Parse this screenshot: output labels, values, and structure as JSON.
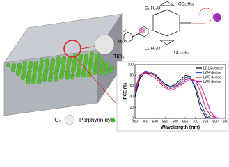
{
  "chart_data": {
    "type": "line",
    "x_label": "Wavelength (nm)",
    "y_label": "IPCE (%)",
    "x": [
      400,
      425,
      450,
      475,
      500,
      525,
      550,
      575,
      600,
      625,
      650,
      675,
      700,
      725,
      750,
      775,
      800,
      825,
      850
    ],
    "xlim": [
      400,
      850
    ],
    "xticks": [
      400,
      450,
      500,
      550,
      600,
      650,
      700,
      750,
      800,
      850
    ],
    "ylim": [
      0,
      100
    ],
    "yticks": [
      0,
      20,
      40,
      60,
      80,
      100
    ],
    "legend": "upper right",
    "series": [
      {
        "name": "LD14 device",
        "color": "#000000",
        "values": [
          40,
          75,
          85,
          83,
          80,
          72,
          64,
          60,
          63,
          72,
          80,
          78,
          55,
          20,
          3,
          0,
          0,
          0,
          0
        ]
      },
      {
        "name": "LW4 device",
        "color": "#1f3fd6",
        "values": [
          45,
          78,
          88,
          86,
          82,
          73,
          63,
          58,
          60,
          68,
          76,
          75,
          60,
          30,
          8,
          1,
          0,
          0,
          0
        ]
      },
      {
        "name": "LW5 device",
        "color": "#d62020",
        "values": [
          50,
          80,
          86,
          84,
          80,
          70,
          60,
          55,
          58,
          65,
          72,
          74,
          70,
          50,
          20,
          5,
          1,
          0,
          0
        ]
      },
      {
        "name": "LW6 device",
        "color": "#c020c0",
        "values": [
          55,
          82,
          85,
          80,
          76,
          66,
          57,
          52,
          55,
          62,
          68,
          72,
          70,
          62,
          40,
          12,
          2,
          0,
          0
        ]
      }
    ]
  },
  "legend_items": {
    "tio2": "TiO₂",
    "dye": "Porphyrin dye"
  },
  "molecule_labels": {
    "tio2": "TiO₂",
    "c1": "C₁₂H₂₅O",
    "c2": "OC₁₂H₂₅",
    "c3": "C₁₂H₂₅O",
    "c4": "OC₁₂H₂₅",
    "ho": "HO",
    "o": "O"
  }
}
